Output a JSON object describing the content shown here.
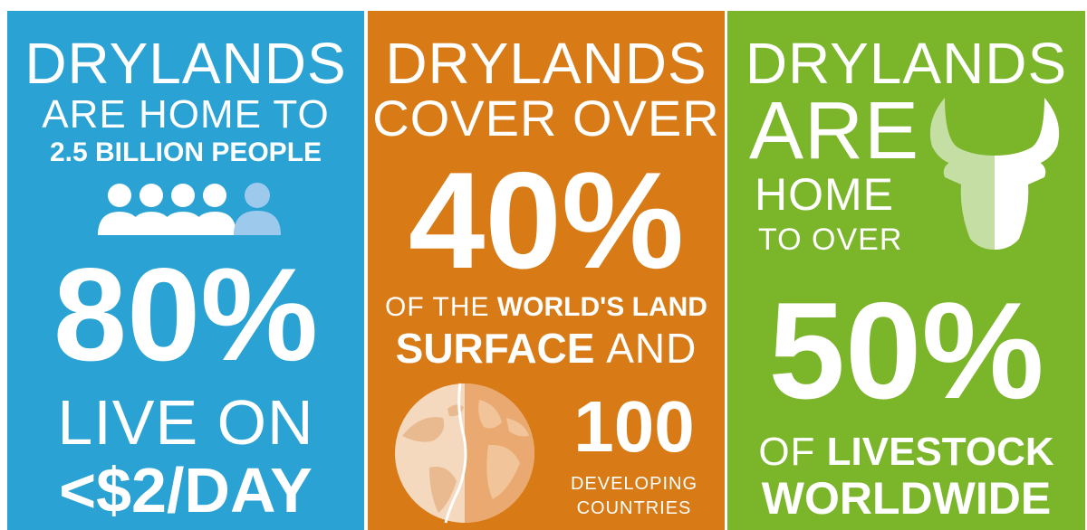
{
  "panels": [
    {
      "heading": "DRYLANDS",
      "subheading": "ARE HOME TO",
      "highlight": "2.5 BILLION PEOPLE",
      "icon": "people-icon",
      "big_stat": "80%",
      "line1": "LIVE ON",
      "line2": "<$2/DAY",
      "people_shown": 5,
      "people_highlighted": 1
    },
    {
      "heading": "DRYLANDS",
      "subheading": "COVER OVER",
      "big_stat": "40%",
      "line1_normal": "OF THE",
      "line1_bold": "WORLD'S LAND",
      "line2_bold": "SURFACE",
      "line2_normal": "AND",
      "icon": "globe-icon",
      "count": "100",
      "count_label1": "DEVELOPING",
      "count_label2": "COUNTRIES"
    },
    {
      "heading": "DRYLANDS",
      "sub1": "ARE",
      "sub2": "HOME",
      "sub3": "TO OVER",
      "icon": "bull-head-icon",
      "big_stat": "50%",
      "line1_normal": "OF",
      "line1_bold": "LIVESTOCK",
      "line2_bold": "WORLDWIDE"
    }
  ],
  "colors": {
    "blue": "#2aa3d4",
    "orange": "#d87a15",
    "green": "#7bb52a",
    "white": "#ffffff"
  }
}
